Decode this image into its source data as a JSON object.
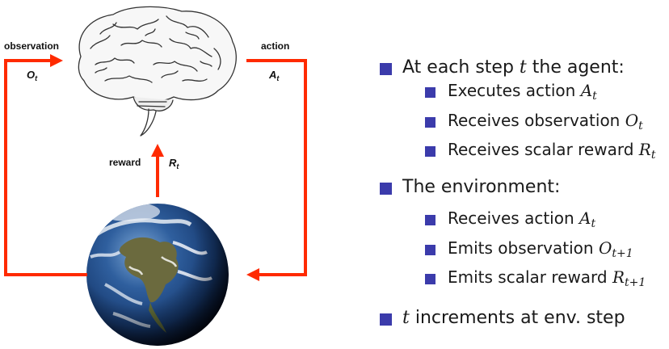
{
  "diagram": {
    "observation_label": "observation",
    "observation_var": "O",
    "observation_sub": "t",
    "action_label": "action",
    "action_var": "A",
    "action_sub": "t",
    "reward_label": "reward",
    "reward_var": "R",
    "reward_sub": "t",
    "arrow_color": "#ff2a00",
    "brain_icon": "brain-icon",
    "earth_icon": "earth-globe-icon"
  },
  "bullets": {
    "agent_head": [
      "At each step ",
      "t",
      " the agent:"
    ],
    "agent_items": [
      {
        "text": "Executes action ",
        "var": "A",
        "sub": "t"
      },
      {
        "text": "Receives observation ",
        "var": "O",
        "sub": "t"
      },
      {
        "text": "Receives scalar reward ",
        "var": "R",
        "sub": "t"
      }
    ],
    "env_head": "The environment:",
    "env_items": [
      {
        "text": "Receives action ",
        "var": "A",
        "sub": "t"
      },
      {
        "text": "Emits observation ",
        "var": "O",
        "sub": "t+1"
      },
      {
        "text": "Emits scalar reward ",
        "var": "R",
        "sub": "t+1"
      }
    ],
    "increment": {
      "var": "t",
      "text": " increments at env. step"
    }
  }
}
